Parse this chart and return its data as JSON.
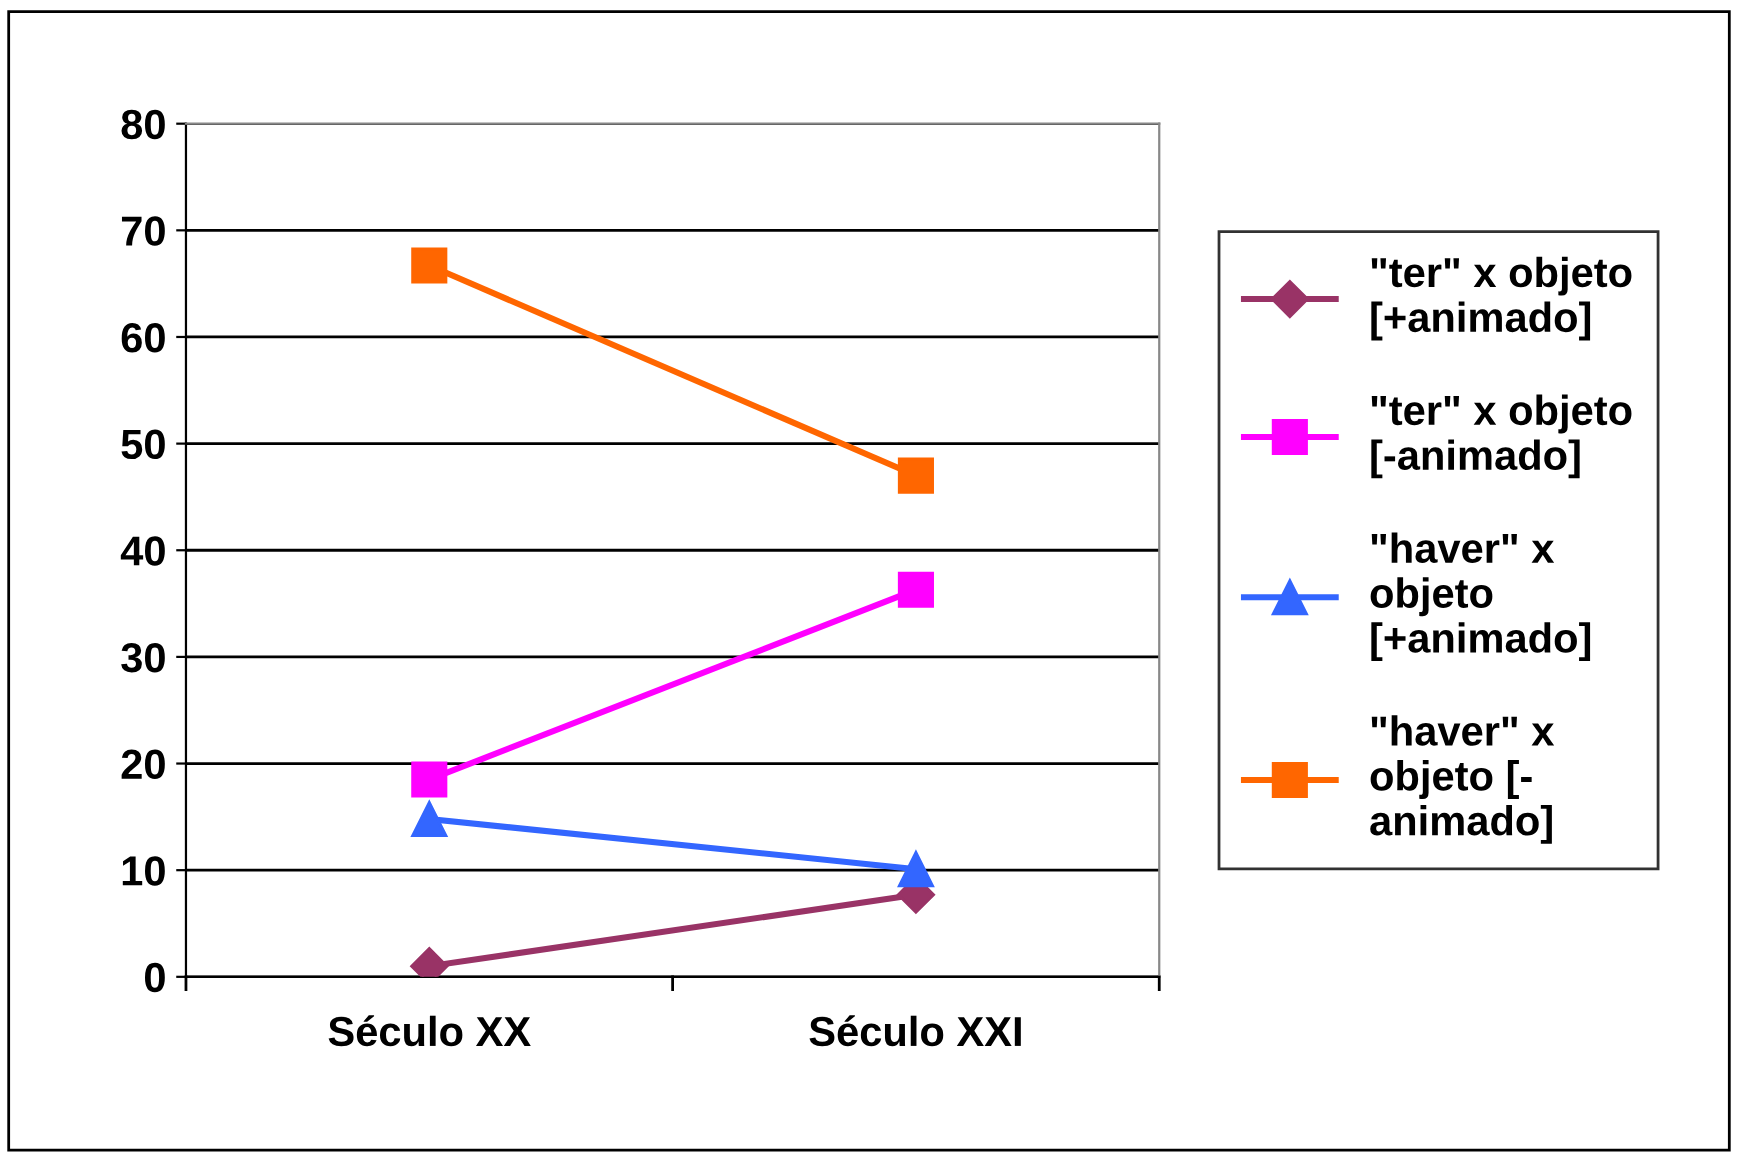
{
  "chart_data": {
    "type": "line",
    "categories": [
      "Século XX",
      "Século XXI"
    ],
    "series": [
      {
        "name": "\"ter\" x objeto\n[+animado]",
        "color": "#993366",
        "marker": "diamond",
        "values": [
          1,
          7.7
        ]
      },
      {
        "name": "\"ter\" x objeto\n[-animado]",
        "color": "#ff00ff",
        "marker": "square",
        "values": [
          18.5,
          36.3
        ]
      },
      {
        "name": "\"haver\" x\nobjeto\n[+animado]",
        "color": "#3366ff",
        "marker": "triangle",
        "values": [
          14.8,
          10.1
        ]
      },
      {
        "name": "\"haver\" x\nobjeto [-\nanimado]",
        "color": "#ff6600",
        "marker": "square",
        "values": [
          66.7,
          47
        ]
      }
    ],
    "ylim": [
      0,
      80
    ],
    "yticks": [
      0,
      10,
      20,
      30,
      40,
      50,
      60,
      70,
      80
    ],
    "grid": "y",
    "legend": "right",
    "line_style": "solid"
  }
}
